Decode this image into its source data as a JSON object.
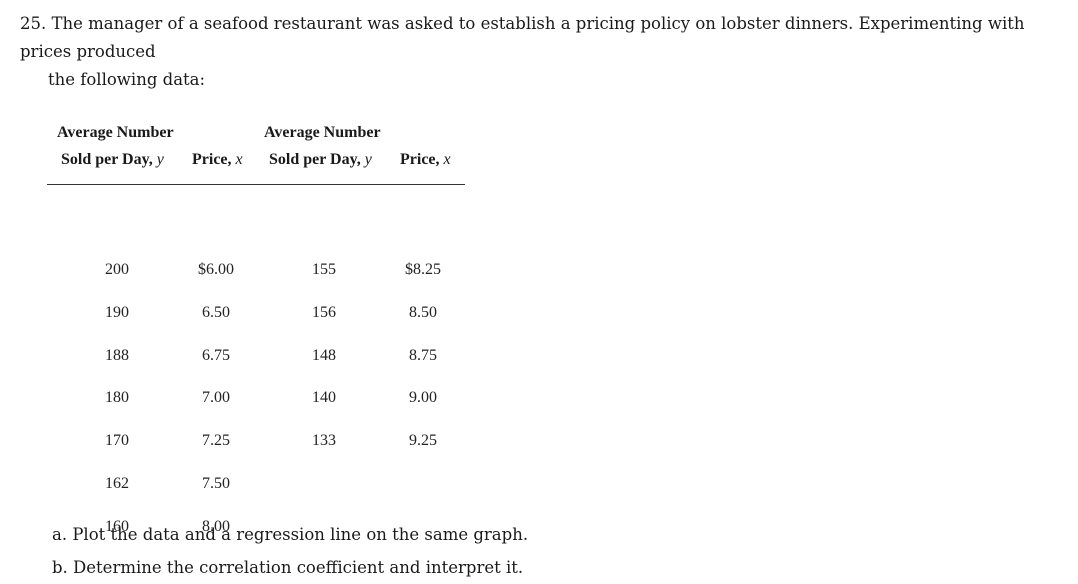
{
  "problem": {
    "number": "25.",
    "text_line1": "The manager of a seafood restaurant was asked to establish a pricing policy on lobster dinners. Experimenting with prices produced",
    "text_line2": "the following data:"
  },
  "table": {
    "headers": {
      "col1_top": "Average Number",
      "col1_bottom": "Sold per Day,",
      "col1_var": "y",
      "col2": "Price,",
      "col2_var": "x",
      "col3_top": "Average Number",
      "col3_bottom": "Sold per Day,",
      "col3_var": "y",
      "col4": "Price,",
      "col4_var": "x"
    },
    "rows": [
      {
        "y1": "200",
        "x1": "$6.00",
        "y2": "155",
        "x2": "$8.25"
      },
      {
        "y1": "190",
        "x1": "6.50",
        "y2": "156",
        "x2": "8.50"
      },
      {
        "y1": "188",
        "x1": "6.75",
        "y2": "148",
        "x2": "8.75"
      },
      {
        "y1": "180",
        "x1": "7.00",
        "y2": "140",
        "x2": "9.00"
      },
      {
        "y1": "170",
        "x1": "7.25",
        "y2": "133",
        "x2": "9.25"
      },
      {
        "y1": "162",
        "x1": "7.50",
        "y2": "",
        "x2": ""
      },
      {
        "y1": "160",
        "x1": "8.00",
        "y2": "",
        "x2": ""
      }
    ]
  },
  "questions": {
    "a": "a. Plot the data and a regression line on the same graph.",
    "b": "b. Determine the correlation coefficient and interpret it."
  }
}
